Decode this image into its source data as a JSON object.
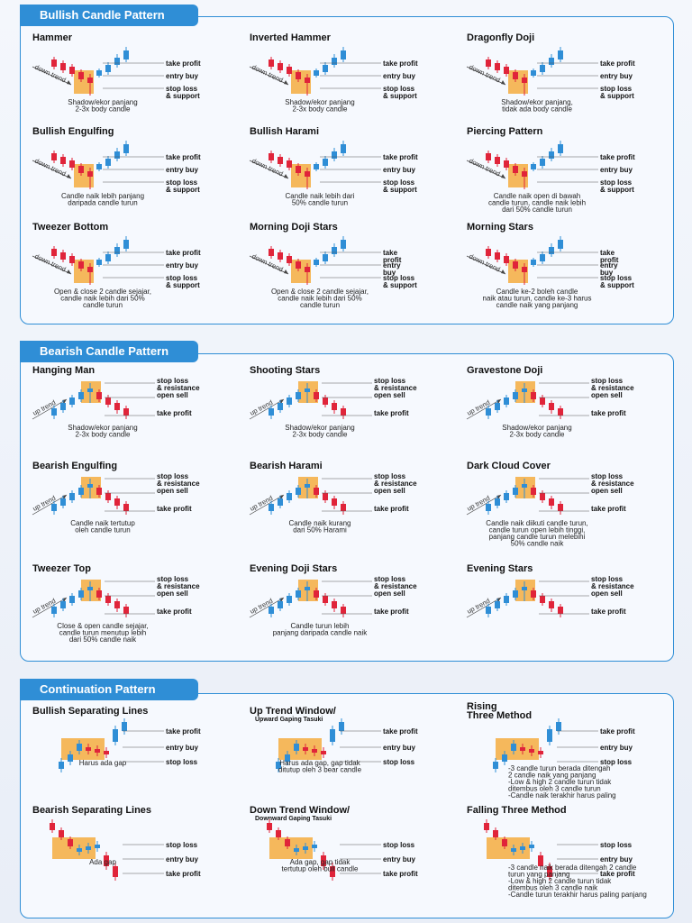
{
  "sections": [
    {
      "title": "Bullish Candle Pattern",
      "kind": "bull",
      "patterns": [
        {
          "name": "Hammer",
          "trend": "down trend",
          "labels": [
            "take profit",
            "entry buy",
            "stop loss\n& support"
          ],
          "desc": [
            "Shadow/ekor panjang",
            "2-3x body candle"
          ]
        },
        {
          "name": "Inverted Hammer",
          "trend": "down trend",
          "labels": [
            "take profit",
            "entry buy",
            "stop loss\n& support"
          ],
          "desc": [
            "Shadow/ekor panjang",
            "2-3x body candle"
          ]
        },
        {
          "name": "Dragonfly Doji",
          "trend": "down trend",
          "labels": [
            "take profit",
            "entry buy",
            "stop loss\n& support"
          ],
          "desc": [
            "Shadow/ekor panjang,",
            "tidak ada body candle"
          ]
        },
        {
          "name": "Bullish Engulfing",
          "trend": "down trend",
          "labels": [
            "take profit",
            "entry buy",
            "stop loss\n& support"
          ],
          "desc": [
            "Candle naik lebih panjang",
            "daripada candle turun"
          ]
        },
        {
          "name": "Bullish Harami",
          "trend": "down trend",
          "labels": [
            "take profit",
            "entry buy",
            "stop loss\n& support"
          ],
          "desc": [
            "Candle naik lebih dari",
            "50% candle turun"
          ]
        },
        {
          "name": "Piercing Pattern",
          "trend": "down trend",
          "labels": [
            "take profit",
            "entry buy",
            "stop loss\n& support"
          ],
          "desc": [
            "Candle naik open di bawah",
            "candle turun, candle naik lebih",
            "dari 50% candle turun"
          ]
        },
        {
          "name": "Tweezer Bottom",
          "trend": "down trend",
          "labels": [
            "take profit",
            "entry buy",
            "stop loss\n& support"
          ],
          "desc": [
            "Open & close 2 candle sejajar,",
            "candle naik lebih dari 50%",
            "candle turun"
          ]
        },
        {
          "name": "Morning Doji Stars",
          "trend": "down trend",
          "labels": [
            "take\nprofit",
            "entry\nbuy",
            "stop loss\n& support"
          ],
          "desc": [
            "Open & close 2 candle sejajar,",
            "candle naik lebih dari 50%",
            "candle turun"
          ]
        },
        {
          "name": "Morning Stars",
          "trend": "down trend",
          "labels": [
            "take\nprofit",
            "entry\nbuy",
            "stop loss\n& support"
          ],
          "desc": [
            "Candle ke-2 boleh candle",
            "naik atau turun, candle ke-3 harus",
            "candle naik yang panjang"
          ]
        }
      ]
    },
    {
      "title": "Bearish Candle Pattern",
      "kind": "bear",
      "patterns": [
        {
          "name": "Hanging Man",
          "trend": "up trend",
          "labels": [
            "stop loss\n& resistance",
            "open sell",
            "take profit"
          ],
          "desc": [
            "Shadow/ekor panjang",
            "2-3x body candle"
          ]
        },
        {
          "name": "Shooting Stars",
          "trend": "up trend",
          "labels": [
            "stop loss\n& resistance",
            "open sell",
            "take profit"
          ],
          "desc": [
            "Shadow/ekor panjang",
            "2-3x body candle"
          ]
        },
        {
          "name": "Gravestone Doji",
          "trend": "up trend",
          "labels": [
            "stop loss\n& resistance",
            "open sell",
            "take profit"
          ],
          "desc": [
            "Shadow/ekor panjang",
            "2-3x body candle"
          ]
        },
        {
          "name": "Bearish Engulfing",
          "trend": "up trend",
          "labels": [
            "stop loss\n& resistance",
            "open sell",
            "take profit"
          ],
          "desc": [
            "Candle naik tertutup",
            "oleh candle turun"
          ]
        },
        {
          "name": "Bearish Harami",
          "trend": "up trend",
          "labels": [
            "stop loss\n& resistance",
            "open sell",
            "take profit"
          ],
          "desc": [
            "Candle naik kurang",
            "dari 50% Harami"
          ]
        },
        {
          "name": "Dark Cloud Cover",
          "trend": "up trend",
          "labels": [
            "stop loss\n& resistance",
            "open sell",
            "take profit"
          ],
          "desc": [
            "Candle naik diikuti candle turun,",
            "candle turun open lebih tinggi,",
            "panjang candle turun melebihi",
            "50% candle naik"
          ]
        },
        {
          "name": "Tweezer Top",
          "trend": "up trend",
          "labels": [
            "stop loss\n& resistance",
            "open sell",
            "take profit"
          ],
          "desc": [
            "Close & open candle sejajar,",
            "candle turun menutup lebih",
            "dari 50% candle naik"
          ]
        },
        {
          "name": "Evening Doji Stars",
          "trend": "up trend",
          "labels": [
            "stop loss\n& resistance",
            "open sell",
            "take profit"
          ],
          "desc": [
            "Candle turun lebih",
            "panjang daripada candle naik"
          ]
        },
        {
          "name": "Evening Stars",
          "trend": "up trend",
          "labels": [
            "stop loss\n& resistance",
            "open sell",
            "take profit"
          ],
          "desc": []
        }
      ]
    },
    {
      "title": "Continuation Pattern",
      "kind": "cont",
      "patterns": [
        {
          "name": "Bullish Separating Lines",
          "sub": "",
          "dir": "up",
          "labels": [
            "take profit",
            "entry buy",
            "stop loss"
          ],
          "desc": [
            "Harus ada gap"
          ]
        },
        {
          "name": "Up Trend Window/",
          "sub": "Upward Gaping Tasuki",
          "dir": "up",
          "labels": [
            "take profit",
            "entry buy",
            "stop loss"
          ],
          "desc": [
            "Harus ada gap, gap tidak",
            "ditutup oleh 3 bear candle"
          ]
        },
        {
          "name": "Rising\nThree Method",
          "sub": "",
          "dir": "up",
          "labels": [
            "take profit",
            "entry buy",
            "stop loss"
          ],
          "desc": [
            "-3 candle turun berada ditengah",
            "2 candle naik yang panjang",
            "-Low & high 2 candle turun tidak",
            "ditembus oleh 3 candle turun",
            "-Candle naik terakhir harus paling",
            "panjang"
          ]
        },
        {
          "name": "Bearish Separating Lines",
          "sub": "",
          "dir": "down",
          "labels": [
            "stop loss",
            "entry buy",
            "take profit"
          ],
          "desc": [
            "Ada gap"
          ]
        },
        {
          "name": "Down Trend Window/",
          "sub": "Downward Gaping Tasuki",
          "dir": "down",
          "labels": [
            "stop loss",
            "entry buy",
            "take profit"
          ],
          "desc": [
            "Ada gap, gap tidak",
            "tertutup oleh bull candle"
          ]
        },
        {
          "name": "Falling Three Method",
          "sub": "",
          "dir": "down",
          "labels": [
            "stop loss",
            "entry buy",
            "take profit"
          ],
          "desc": [
            "-3 candle naik berada ditengah 2 candle",
            "turun yang panjang",
            "-Low & high 2 candle turun tidak",
            "ditembus oleh 3 candle naik",
            "-Candle turun terakhir harus paling panjang"
          ]
        }
      ]
    }
  ],
  "colors": {
    "up": "#2f8ed6",
    "down": "#e0243a",
    "highlight": "#f5b04a",
    "accent": "#2f8ed6"
  }
}
